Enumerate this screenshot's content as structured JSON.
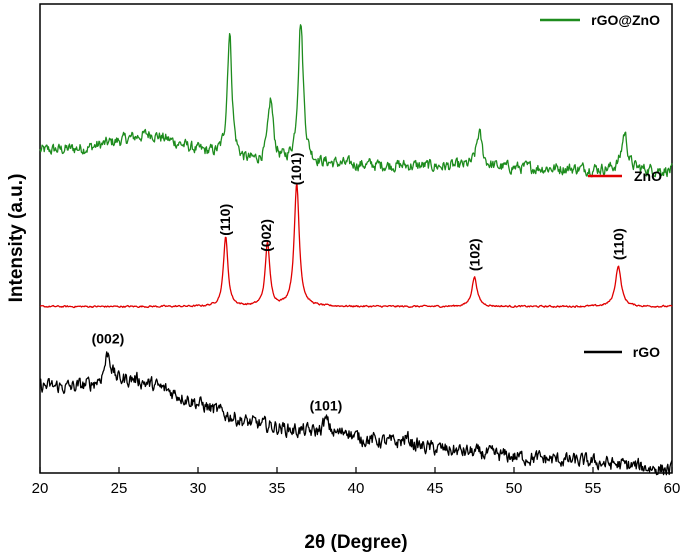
{
  "chart_data": {
    "type": "line",
    "title": "",
    "xlabel": "2θ (Degree)",
    "ylabel": "Intensity (a.u.)",
    "xlim": [
      20,
      60
    ],
    "xticks": [
      "20",
      "25",
      "30",
      "35",
      "40",
      "45",
      "50",
      "55",
      "60"
    ],
    "grid": false,
    "series": [
      {
        "name": "rGO@ZnO",
        "color": "#1e8c1e",
        "legend": "top-right",
        "band": [
          0.0,
          0.33
        ],
        "baseline": [
          [
            20,
            0.22
          ],
          [
            23,
            0.24
          ],
          [
            27,
            0.34
          ],
          [
            30,
            0.22
          ],
          [
            33,
            0.14
          ],
          [
            40,
            0.12
          ],
          [
            50,
            0.1
          ],
          [
            60,
            0.08
          ]
        ],
        "peaks": [
          [
            32.0,
            0.88,
            0.18
          ],
          [
            34.6,
            0.43,
            0.2
          ],
          [
            36.5,
            1.0,
            0.2
          ],
          [
            47.8,
            0.24,
            0.22
          ],
          [
            57.0,
            0.26,
            0.22
          ]
        ],
        "noise": 0.035
      },
      {
        "name": "ZnO",
        "color": "#e00000",
        "legend": "top-right",
        "band": [
          0.335,
          0.62
        ],
        "baseline": [
          [
            20,
            0.0
          ],
          [
            60,
            0.0
          ]
        ],
        "peaks": [
          [
            31.75,
            0.57,
            0.17
          ],
          [
            34.4,
            0.52,
            0.17
          ],
          [
            36.25,
            1.0,
            0.19
          ],
          [
            47.5,
            0.24,
            0.2
          ],
          [
            56.6,
            0.33,
            0.22
          ]
        ],
        "noise": 0.006
      },
      {
        "name": "rGO",
        "color": "#000000",
        "legend": "top-right",
        "band": [
          0.69,
          1.0
        ],
        "baseline": [
          [
            20,
            0.63
          ],
          [
            22,
            0.62
          ],
          [
            24,
            0.65
          ],
          [
            26,
            0.68
          ],
          [
            28,
            0.6
          ],
          [
            30,
            0.5
          ],
          [
            33,
            0.36
          ],
          [
            36,
            0.3
          ],
          [
            40,
            0.24
          ],
          [
            45,
            0.16
          ],
          [
            50,
            0.1
          ],
          [
            55,
            0.06
          ],
          [
            60,
            0.0
          ]
        ],
        "peaks": [
          [
            24.3,
            0.22,
            0.25
          ],
          [
            38.1,
            0.1,
            0.25
          ],
          [
            39.4,
            0.06,
            0.2
          ],
          [
            43.2,
            0.05,
            0.3
          ]
        ],
        "noise": 0.045
      }
    ],
    "annotations": [
      {
        "text": "(110)",
        "x": 31.7,
        "series": "ZnO"
      },
      {
        "text": "(002)",
        "x": 34.3,
        "series": "ZnO"
      },
      {
        "text": "(101)",
        "x": 36.2,
        "series": "ZnO"
      },
      {
        "text": "(102)",
        "x": 47.5,
        "series": "ZnO"
      },
      {
        "text": "(110)",
        "x": 56.6,
        "series": "ZnO"
      },
      {
        "text": "(002)",
        "x": 24.3,
        "series": "rGO"
      },
      {
        "text": "(101)",
        "x": 38.1,
        "series": "rGO"
      }
    ]
  }
}
